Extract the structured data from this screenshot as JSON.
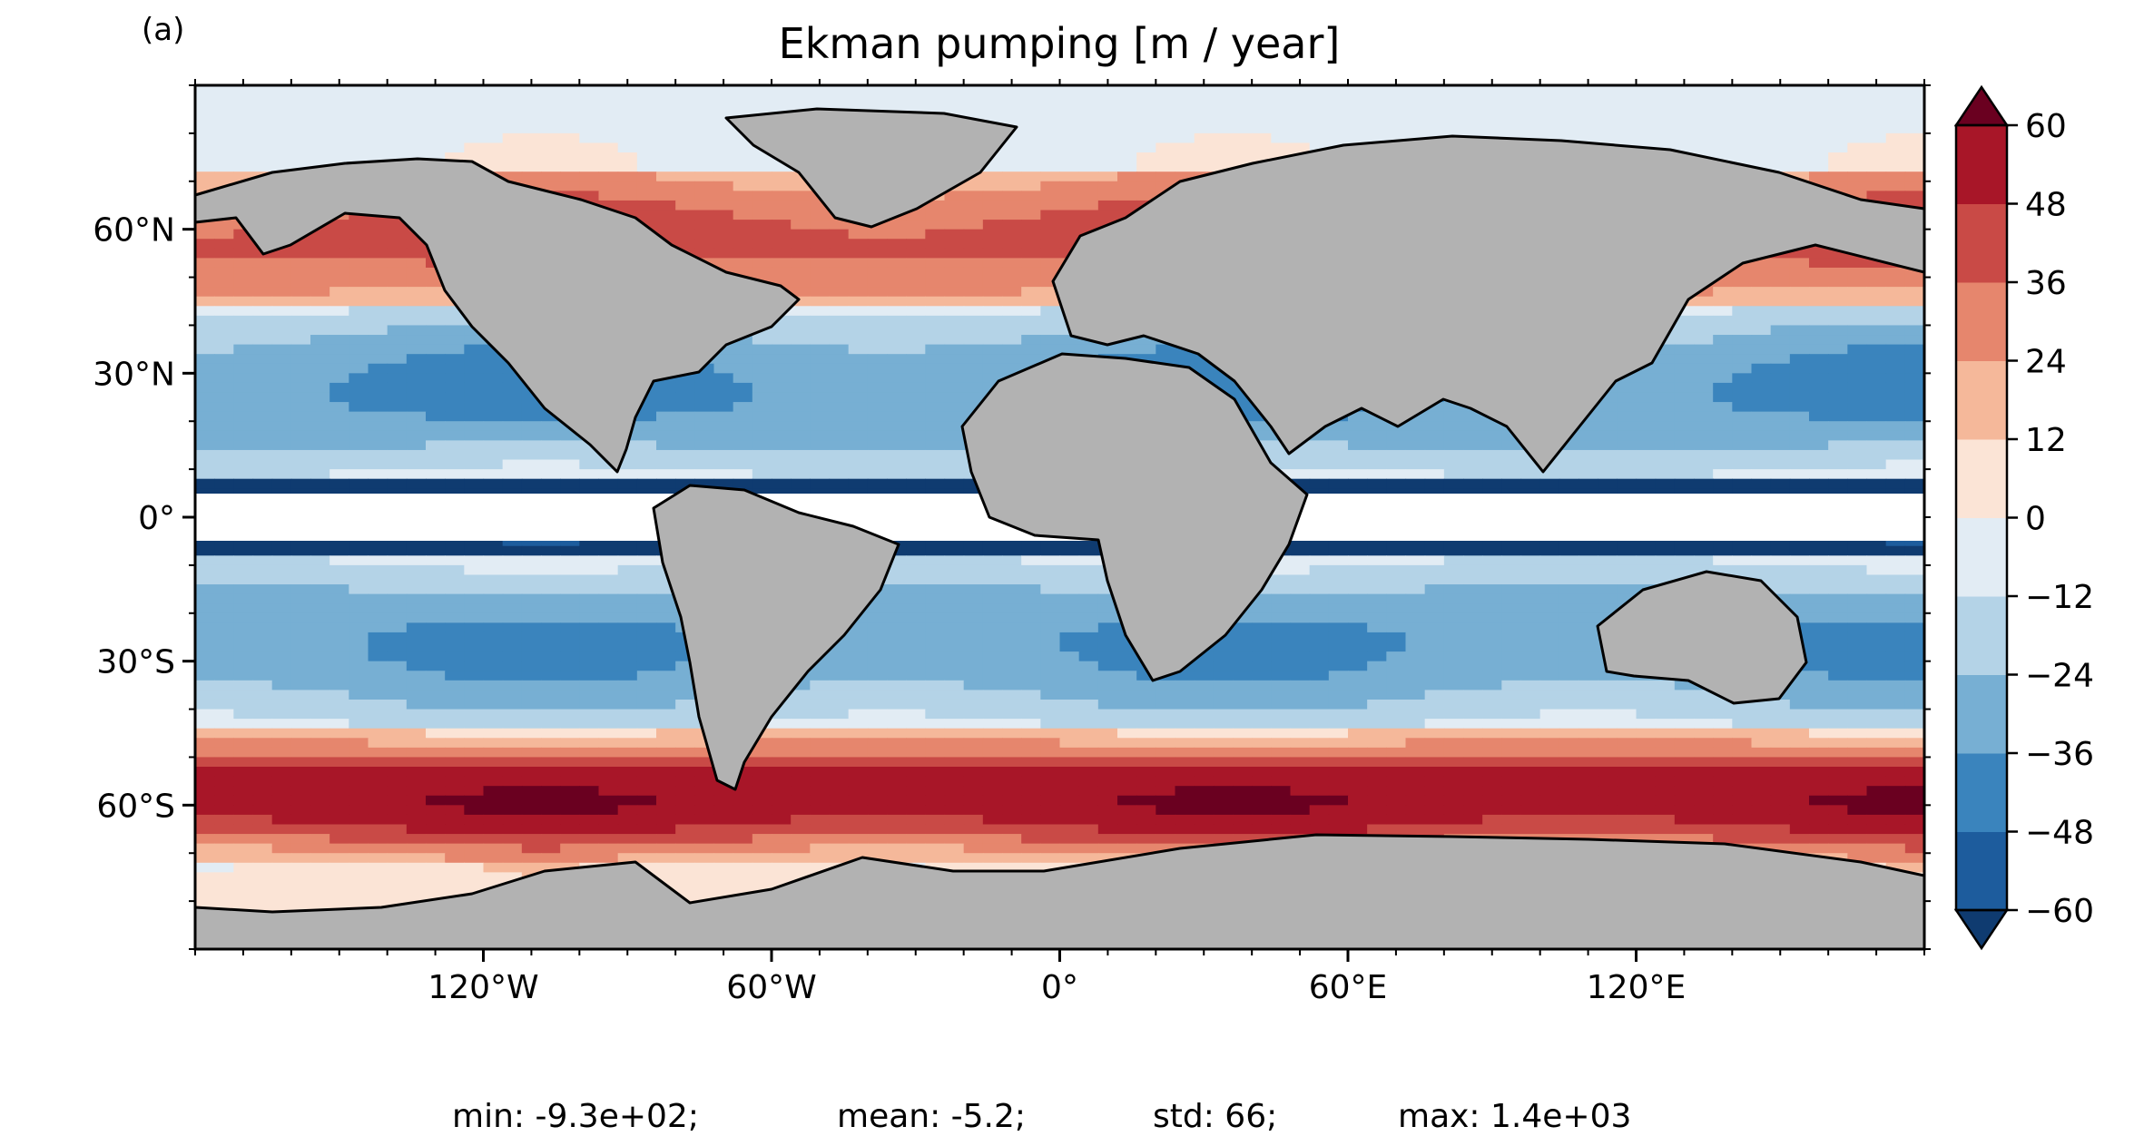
{
  "panel_label": "(a)",
  "chart_data": {
    "type": "heatmap",
    "title": "Ekman pumping [m / year]",
    "projection": "PlateCarree",
    "x_ticks": [
      {
        "lon": -120,
        "label": "120°W"
      },
      {
        "lon": -60,
        "label": "60°W"
      },
      {
        "lon": 0,
        "label": "0°"
      },
      {
        "lon": 60,
        "label": "60°E"
      },
      {
        "lon": 120,
        "label": "120°E"
      }
    ],
    "y_ticks": [
      {
        "lat": 60,
        "label": "60°N"
      },
      {
        "lat": 30,
        "label": "30°N"
      },
      {
        "lat": 0,
        "label": "0°"
      },
      {
        "lat": -30,
        "label": "30°S"
      },
      {
        "lat": -60,
        "label": "60°S"
      }
    ],
    "xlim": [
      -180,
      180
    ],
    "ylim": [
      -90,
      90
    ],
    "colorbar": {
      "levels": [
        -60,
        -48,
        -36,
        -24,
        -12,
        0,
        12,
        24,
        36,
        48,
        60
      ],
      "tick_labels": [
        "−60",
        "−48",
        "−36",
        "−24",
        "−12",
        "0",
        "12",
        "24",
        "36",
        "48",
        "60"
      ],
      "colors": [
        "#1d5c9d",
        "#3a84bd",
        "#77afd3",
        "#b4d3e7",
        "#e2ecf4",
        "#fbe4d6",
        "#f5b89a",
        "#e6866d",
        "#c94a46",
        "#a81628"
      ],
      "under_color": "#0f3b70",
      "over_color": "#6a0020",
      "extend": "both",
      "location": "right"
    },
    "land_color": "#b2b2b2",
    "masked_equatorial_band_lat": [
      -5,
      5
    ],
    "stats": {
      "min": "-9.3e+02",
      "mean": "-5.2",
      "std": "66",
      "max": "1.4e+03"
    }
  },
  "stats_text": {
    "min": "min: -9.3e+02;",
    "mean": "mean: -5.2;",
    "std": "std: 66;",
    "max": "max: 1.4e+03"
  }
}
